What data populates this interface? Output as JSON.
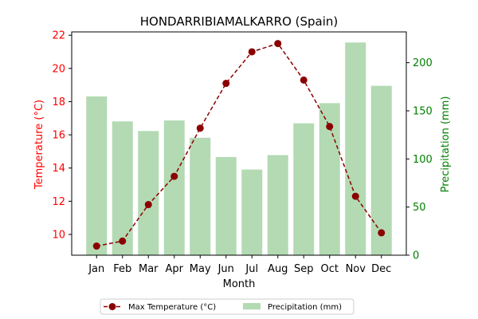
{
  "chart_data": {
    "type": "bar",
    "title": "HONDARRIBIAMALKARRO (Spain)",
    "xlabel": "Month",
    "categories": [
      "Jan",
      "Feb",
      "Mar",
      "Apr",
      "May",
      "Jun",
      "Jul",
      "Aug",
      "Sep",
      "Oct",
      "Nov",
      "Dec"
    ],
    "y_left": {
      "label": "Temperature (°C)",
      "ticks": [
        10,
        12,
        14,
        16,
        18,
        20,
        22
      ],
      "ylim": [
        8.75,
        22.2
      ],
      "color": "#ff0000"
    },
    "y_right": {
      "label": "Precipitation (mm)",
      "ticks": [
        0,
        50,
        100,
        150,
        200
      ],
      "ylim": [
        0,
        232
      ],
      "color": "#008000"
    },
    "series": [
      {
        "name": "Max Temperature (°C)",
        "type": "line",
        "axis": "left",
        "color": "#8b0000",
        "values": [
          9.3,
          9.6,
          11.8,
          13.5,
          16.4,
          19.1,
          21.0,
          21.5,
          19.3,
          16.5,
          12.3,
          10.1
        ]
      },
      {
        "name": "Precipitation (mm)",
        "type": "bar",
        "axis": "right",
        "color": "#b3dab3",
        "values": [
          165,
          139,
          129,
          140,
          122,
          102,
          89,
          104,
          137,
          158,
          221,
          176
        ]
      }
    ],
    "legend": {
      "placement": "bottom-center"
    }
  }
}
